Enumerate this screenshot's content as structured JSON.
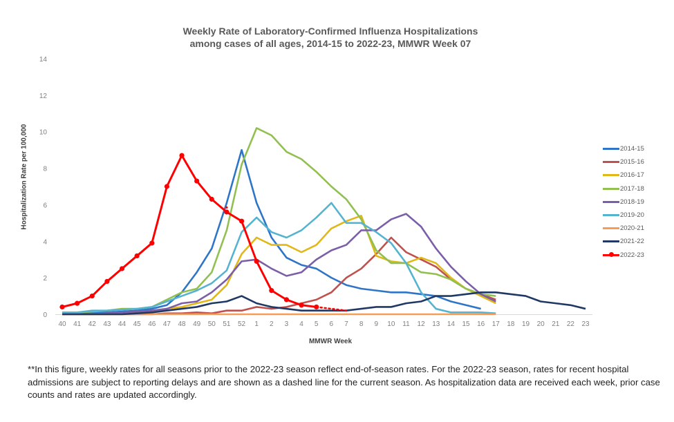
{
  "chart_data": {
    "type": "line",
    "title": "Weekly Rate of Laboratory-Confirmed Influenza Hospitalizations",
    "subtitle": "among cases of all ages, 2014-15 to 2022-23, MMWR  Week 07",
    "xlabel": "MMWR Week",
    "ylabel": "Hospitalization  Rate per 100,000",
    "ylim": [
      0,
      14
    ],
    "yticks": [
      "0",
      "2",
      "4",
      "6",
      "8",
      "10",
      "12",
      "14"
    ],
    "categories": [
      "40",
      "41",
      "42",
      "43",
      "44",
      "45",
      "46",
      "47",
      "48",
      "49",
      "50",
      "51",
      "52",
      "1",
      "2",
      "3",
      "4",
      "5",
      "6",
      "7",
      "8",
      "9",
      "10",
      "11",
      "12",
      "13",
      "14",
      "15",
      "16",
      "17",
      "18",
      "19",
      "20",
      "21",
      "22",
      "23"
    ],
    "grid": false,
    "legend_position": "right",
    "series": [
      {
        "name": "2014-15",
        "color": "#2e75c8",
        "values": [
          0.1,
          0.1,
          0.1,
          0.1,
          0.15,
          0.2,
          0.3,
          0.5,
          1.2,
          2.3,
          3.6,
          6.1,
          9.0,
          6.1,
          4.2,
          3.1,
          2.7,
          2.5,
          2.0,
          1.6,
          1.4,
          1.3,
          1.2,
          1.2,
          1.1,
          1.0,
          0.7,
          0.5,
          0.3,
          null,
          null,
          null,
          null,
          null,
          null,
          null
        ]
      },
      {
        "name": "2015-16",
        "color": "#c0504d",
        "values": [
          0,
          0,
          0,
          0,
          0,
          0,
          0,
          0.05,
          0.05,
          0.1,
          0.05,
          0.2,
          0.2,
          0.4,
          0.3,
          0.4,
          0.6,
          0.8,
          1.2,
          2.0,
          2.5,
          3.3,
          4.2,
          3.4,
          3.0,
          2.6,
          1.9,
          1.4,
          1.1,
          0.8,
          null,
          null,
          null,
          null,
          null,
          null
        ]
      },
      {
        "name": "2016-17",
        "color": "#e0b81a",
        "values": [
          0,
          0,
          0,
          0,
          0.05,
          0.1,
          0.15,
          0.3,
          0.4,
          0.6,
          0.8,
          1.6,
          3.3,
          4.2,
          3.8,
          3.8,
          3.4,
          3.8,
          4.7,
          5.1,
          5.4,
          3.2,
          2.9,
          2.8,
          3.1,
          2.8,
          2.0,
          1.4,
          1.0,
          0.6,
          null,
          null,
          null,
          null,
          null,
          null
        ]
      },
      {
        "name": "2017-18",
        "color": "#92c050",
        "values": [
          0.05,
          0.1,
          0.15,
          0.2,
          0.3,
          0.3,
          0.4,
          0.8,
          1.2,
          1.4,
          2.3,
          4.6,
          8.2,
          10.2,
          9.8,
          8.9,
          8.5,
          7.8,
          7.0,
          6.3,
          5.2,
          3.5,
          2.8,
          2.8,
          2.3,
          2.2,
          1.9,
          1.4,
          1.1,
          1.0,
          null,
          null,
          null,
          null,
          null,
          null
        ]
      },
      {
        "name": "2018-19",
        "color": "#7b5ea7",
        "values": [
          0,
          0,
          0,
          0.05,
          0.1,
          0.15,
          0.2,
          0.3,
          0.6,
          0.7,
          1.2,
          1.9,
          2.9,
          3.0,
          2.5,
          2.1,
          2.3,
          3.0,
          3.5,
          3.8,
          4.6,
          4.6,
          5.2,
          5.5,
          4.8,
          3.6,
          2.6,
          1.8,
          1.1,
          0.7,
          null,
          null,
          null,
          null,
          null,
          null
        ]
      },
      {
        "name": "2019-20",
        "color": "#56b3cf",
        "values": [
          0.1,
          0.1,
          0.2,
          0.2,
          0.25,
          0.3,
          0.4,
          0.7,
          1.0,
          1.3,
          1.7,
          2.4,
          4.5,
          5.3,
          4.5,
          4.2,
          4.6,
          5.3,
          6.1,
          5.0,
          5.0,
          4.5,
          3.9,
          2.8,
          1.2,
          0.3,
          0.1,
          0.1,
          0.1,
          0.05,
          null,
          null,
          null,
          null,
          null,
          null
        ]
      },
      {
        "name": "2020-21",
        "color": "#f59d56",
        "values": [
          0,
          0,
          0,
          0,
          0,
          0,
          0,
          0,
          0,
          0,
          0,
          0,
          0,
          0,
          0,
          0,
          0,
          0,
          0,
          0,
          0,
          0,
          0,
          0,
          0,
          0,
          0,
          0,
          0,
          0,
          null,
          null,
          null,
          null,
          null,
          null
        ]
      },
      {
        "name": "2021-22",
        "color": "#203864",
        "values": [
          0,
          0,
          0,
          0,
          0,
          0.05,
          0.1,
          0.2,
          0.3,
          0.4,
          0.6,
          0.7,
          1.0,
          0.6,
          0.4,
          0.3,
          0.2,
          0.2,
          0.2,
          0.2,
          0.3,
          0.4,
          0.4,
          0.6,
          0.7,
          1.0,
          1.0,
          1.1,
          1.2,
          1.2,
          1.1,
          1.0,
          0.7,
          0.6,
          0.5,
          0.3
        ]
      },
      {
        "name": "2022-23",
        "color": "#ff0000",
        "marker": "circle",
        "values": [
          0.4,
          0.6,
          1.0,
          1.8,
          2.5,
          3.2,
          3.9,
          7.0,
          8.7,
          7.3,
          6.3,
          5.6,
          5.1,
          2.9,
          1.3,
          0.8,
          0.5,
          0.4,
          null,
          null,
          null,
          null,
          null,
          null,
          null,
          null,
          null,
          null,
          null,
          null,
          null,
          null,
          null,
          null,
          null,
          null
        ],
        "dashed_values": [
          null,
          null,
          null,
          null,
          null,
          null,
          null,
          null,
          null,
          null,
          null,
          null,
          null,
          null,
          null,
          null,
          null,
          0.4,
          0.3,
          0.2,
          null,
          null,
          null,
          null,
          null,
          null,
          null,
          null,
          null,
          null,
          null,
          null,
          null,
          null,
          null,
          null
        ],
        "stray_point": {
          "x": "51",
          "y": 5.85
        }
      }
    ]
  },
  "footnote": "**In this figure, weekly rates for all seasons prior to the 2022-23 season reflect end-of-season rates. For the 2022-23 season, rates for recent hospital admissions are subject to reporting delays and are shown as a dashed line for the current season. As hospitalization data are received each week, prior case counts and rates are updated accordingly."
}
